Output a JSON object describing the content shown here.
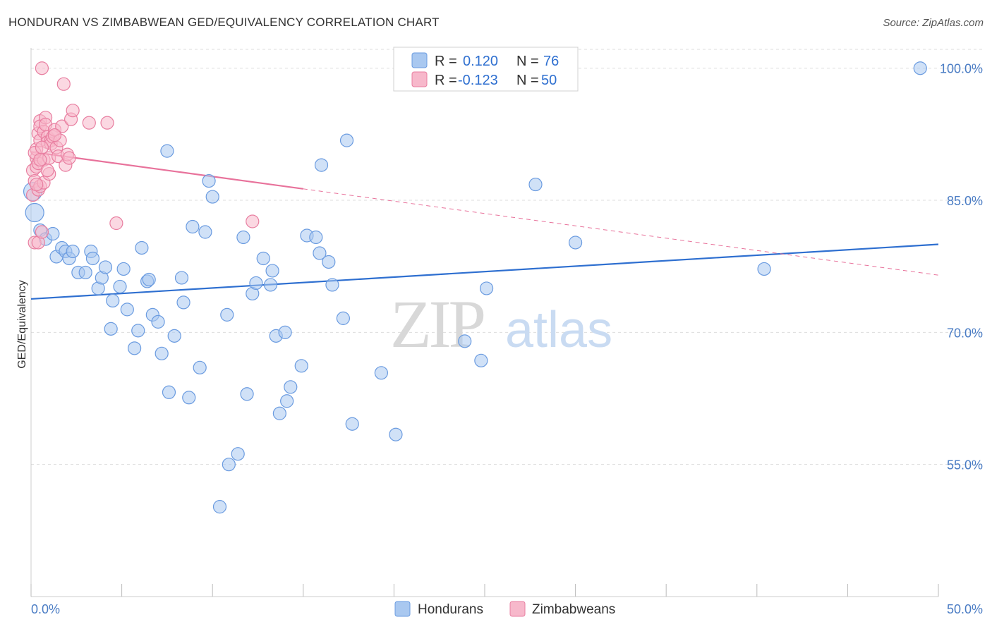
{
  "title": "HONDURAN VS ZIMBABWEAN GED/EQUIVALENCY CORRELATION CHART",
  "source": "Source: ZipAtlas.com",
  "watermark": {
    "zip": "ZIP",
    "atlas": "atlas"
  },
  "colors": {
    "blue_fill": "#a9c8f0",
    "blue_stroke": "#6a9be0",
    "blue_line": "#2e6fd0",
    "pink_fill": "#f7b8cb",
    "pink_stroke": "#e87ea0",
    "pink_line": "#e8729b",
    "tick_text": "#4a7cc4",
    "grid": "#dddddd"
  },
  "legend": {
    "r_label": "R =",
    "n_label": "N =",
    "rows": [
      {
        "series": "Hondurans",
        "r": "0.120",
        "n": "76"
      },
      {
        "series": "Zimbabweans",
        "r": "-0.123",
        "n": "50"
      }
    ]
  },
  "bottom_legend": [
    "Hondurans",
    "Zimbabweans"
  ],
  "chart_data": {
    "type": "scatter",
    "title": "HONDURAN VS ZIMBABWEAN GED/EQUIVALENCY CORRELATION CHART",
    "xlabel": "",
    "ylabel": "GED/Equivalency",
    "xlim": [
      0,
      50
    ],
    "ylim": [
      40,
      101.5
    ],
    "x_tick_labels": [
      "0.0%",
      "50.0%"
    ],
    "y_ticks": [
      55,
      70,
      85,
      100
    ],
    "y_tick_labels": [
      "55.0%",
      "70.0%",
      "85.0%",
      "100.0%"
    ],
    "grid": true,
    "legend_position": "top-center",
    "series": [
      {
        "name": "Hondurans",
        "r": 0.12,
        "n": 76,
        "trend": {
          "x0": 0,
          "y0": 73.8,
          "x1": 50,
          "y1": 80.0
        },
        "points": [
          [
            0.1,
            86.0
          ],
          [
            0.2,
            83.6
          ],
          [
            0.5,
            81.6
          ],
          [
            0.8,
            80.6
          ],
          [
            1.2,
            81.2
          ],
          [
            1.4,
            78.6
          ],
          [
            1.7,
            79.6
          ],
          [
            1.9,
            79.2
          ],
          [
            2.1,
            78.4
          ],
          [
            2.3,
            79.2
          ],
          [
            2.6,
            76.8
          ],
          [
            3.0,
            76.8
          ],
          [
            3.3,
            79.2
          ],
          [
            3.4,
            78.4
          ],
          [
            3.7,
            75.0
          ],
          [
            3.9,
            76.2
          ],
          [
            4.1,
            77.4
          ],
          [
            4.5,
            73.6
          ],
          [
            4.4,
            70.4
          ],
          [
            4.9,
            75.2
          ],
          [
            5.1,
            77.2
          ],
          [
            5.3,
            72.6
          ],
          [
            5.7,
            68.2
          ],
          [
            5.9,
            70.2
          ],
          [
            6.1,
            79.6
          ],
          [
            6.4,
            75.8
          ],
          [
            6.5,
            76.0
          ],
          [
            6.7,
            72.0
          ],
          [
            7.0,
            71.2
          ],
          [
            7.2,
            67.6
          ],
          [
            7.5,
            90.6
          ],
          [
            7.6,
            63.2
          ],
          [
            7.9,
            69.6
          ],
          [
            8.3,
            76.2
          ],
          [
            8.4,
            73.4
          ],
          [
            8.7,
            62.6
          ],
          [
            8.9,
            82.0
          ],
          [
            9.3,
            66.0
          ],
          [
            9.6,
            81.4
          ],
          [
            9.8,
            87.2
          ],
          [
            10.0,
            85.4
          ],
          [
            10.4,
            50.2
          ],
          [
            10.8,
            72.0
          ],
          [
            10.9,
            55.0
          ],
          [
            11.4,
            56.2
          ],
          [
            11.7,
            80.8
          ],
          [
            11.9,
            63.0
          ],
          [
            12.2,
            74.4
          ],
          [
            12.4,
            75.6
          ],
          [
            12.8,
            78.4
          ],
          [
            13.2,
            75.4
          ],
          [
            13.3,
            77.0
          ],
          [
            13.5,
            69.6
          ],
          [
            13.7,
            60.8
          ],
          [
            14.0,
            70.0
          ],
          [
            14.1,
            62.2
          ],
          [
            14.3,
            63.8
          ],
          [
            14.9,
            66.2
          ],
          [
            15.2,
            81.0
          ],
          [
            15.7,
            80.8
          ],
          [
            15.9,
            79.0
          ],
          [
            16.0,
            89.0
          ],
          [
            16.4,
            78.0
          ],
          [
            16.6,
            75.4
          ],
          [
            17.2,
            71.6
          ],
          [
            17.4,
            91.8
          ],
          [
            17.7,
            59.6
          ],
          [
            19.3,
            65.4
          ],
          [
            20.1,
            58.4
          ],
          [
            23.9,
            69.0
          ],
          [
            24.8,
            66.8
          ],
          [
            25.1,
            75.0
          ],
          [
            27.8,
            86.8
          ],
          [
            30.0,
            80.2
          ],
          [
            40.4,
            77.2
          ],
          [
            49.0,
            100.0
          ]
        ]
      },
      {
        "name": "Zimbabweans",
        "r": -0.123,
        "n": 50,
        "trend": {
          "x0": 0,
          "y0": 90.5,
          "x1": 15,
          "y1": 86.3
        },
        "trend_extension": {
          "x0": 15,
          "y0": 86.3,
          "x1": 50,
          "y1": 76.5
        },
        "points": [
          [
            0.1,
            88.4
          ],
          [
            0.1,
            85.6
          ],
          [
            0.2,
            87.2
          ],
          [
            0.2,
            80.2
          ],
          [
            0.3,
            89.8
          ],
          [
            0.3,
            90.8
          ],
          [
            0.3,
            88.8
          ],
          [
            0.4,
            92.6
          ],
          [
            0.4,
            89.2
          ],
          [
            0.4,
            86.2
          ],
          [
            0.4,
            80.2
          ],
          [
            0.5,
            94.0
          ],
          [
            0.5,
            93.4
          ],
          [
            0.5,
            91.8
          ],
          [
            0.5,
            86.6
          ],
          [
            0.6,
            100.0
          ],
          [
            0.6,
            81.4
          ],
          [
            0.7,
            92.8
          ],
          [
            0.7,
            89.6
          ],
          [
            0.7,
            87.0
          ],
          [
            0.8,
            94.4
          ],
          [
            0.8,
            93.6
          ],
          [
            0.9,
            92.2
          ],
          [
            0.9,
            91.6
          ],
          [
            1.0,
            88.0
          ],
          [
            1.0,
            89.8
          ],
          [
            1.1,
            91.8
          ],
          [
            1.1,
            91.4
          ],
          [
            1.2,
            92.2
          ],
          [
            1.3,
            93.0
          ],
          [
            1.4,
            91.0
          ],
          [
            1.5,
            90.0
          ],
          [
            1.6,
            91.8
          ],
          [
            1.7,
            93.4
          ],
          [
            1.8,
            98.2
          ],
          [
            1.9,
            89.0
          ],
          [
            2.0,
            90.2
          ],
          [
            2.1,
            89.8
          ],
          [
            2.2,
            94.2
          ],
          [
            2.3,
            95.2
          ],
          [
            3.2,
            93.8
          ],
          [
            4.2,
            93.8
          ],
          [
            4.7,
            82.4
          ],
          [
            12.2,
            82.6
          ],
          [
            0.2,
            90.4
          ],
          [
            0.3,
            86.8
          ],
          [
            0.6,
            91.0
          ],
          [
            0.9,
            88.4
          ],
          [
            1.3,
            92.4
          ],
          [
            0.5,
            89.6
          ]
        ]
      }
    ]
  }
}
